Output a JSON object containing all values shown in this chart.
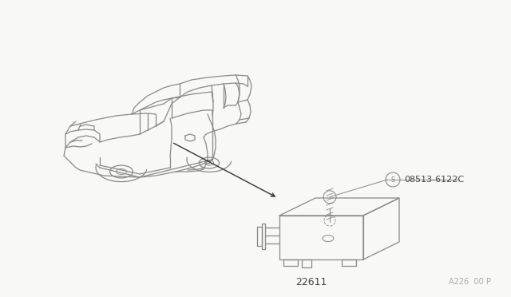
{
  "bg_color": "#f8f8f4",
  "line_color": "#888888",
  "line_color_dark": "#555555",
  "part_label_ecu": "22611",
  "part_label_bolt": "08513-6122C",
  "page_ref": "A226  00 P",
  "font_size_label": 8,
  "font_size_ref": 7
}
